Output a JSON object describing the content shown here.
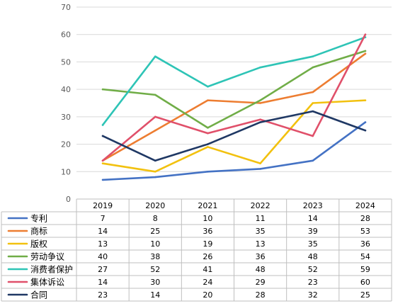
{
  "chart_data": {
    "type": "line",
    "title": "",
    "xlabel": "",
    "ylabel": "",
    "categories": [
      "2019",
      "2020",
      "2021",
      "2022",
      "2023",
      "2024"
    ],
    "ylim": [
      0,
      70
    ],
    "yticks": [
      0,
      10,
      20,
      30,
      40,
      50,
      60,
      70
    ],
    "grid": true,
    "legend": "data-table-bottom",
    "series": [
      {
        "name": "专利",
        "color": "#4472C4",
        "values": [
          7,
          8,
          10,
          11,
          14,
          28
        ]
      },
      {
        "name": "商标",
        "color": "#ED7D31",
        "values": [
          14,
          25,
          36,
          35,
          39,
          53
        ]
      },
      {
        "name": "版权",
        "color": "#F2C10F",
        "values": [
          13,
          10,
          19,
          13,
          35,
          36
        ]
      },
      {
        "name": "劳动争议",
        "color": "#70AD47",
        "values": [
          40,
          38,
          26,
          36,
          48,
          54
        ]
      },
      {
        "name": "消费者保护",
        "color": "#2EC4B6",
        "values": [
          27,
          52,
          41,
          48,
          52,
          59
        ]
      },
      {
        "name": "集体诉讼",
        "color": "#E0506A",
        "values": [
          14,
          30,
          24,
          29,
          23,
          60
        ]
      },
      {
        "name": "合同",
        "color": "#1F3864",
        "values": [
          23,
          14,
          20,
          28,
          32,
          25
        ]
      }
    ]
  }
}
